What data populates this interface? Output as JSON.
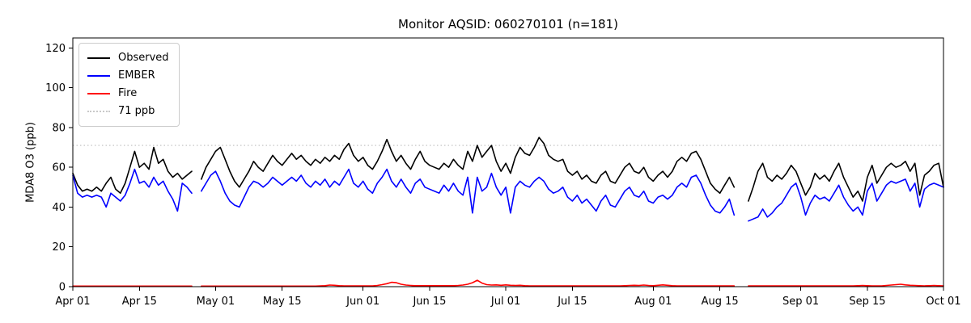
{
  "chart_data": {
    "type": "line",
    "title": "Monitor AQSID: 060270101 (n=181)",
    "ylabel": "MDA8 O3 (ppb)",
    "ylim": [
      0,
      125
    ],
    "yticks": [
      0,
      20,
      40,
      60,
      80,
      100,
      120
    ],
    "x_tick_labels": [
      "Apr 01",
      "Apr 15",
      "May 01",
      "May 15",
      "Jun 01",
      "Jun 15",
      "Jul 01",
      "Jul 15",
      "Aug 01",
      "Aug 15",
      "Sep 01",
      "Sep 15",
      "Oct 01"
    ],
    "x_tick_days": [
      0,
      14,
      30,
      44,
      61,
      75,
      91,
      105,
      122,
      136,
      153,
      167,
      183
    ],
    "n_days": 184,
    "grid": "off",
    "legend_position": "upper left",
    "threshold": {
      "value": 71,
      "label": "71 ppb",
      "color": "#c9c9c9",
      "style": "dotted"
    },
    "series": [
      {
        "name": "Observed",
        "color": "#000000",
        "values": [
          57,
          51,
          48,
          49,
          48,
          50,
          48,
          52,
          55,
          49,
          47,
          52,
          60,
          68,
          60,
          62,
          59,
          70,
          62,
          64,
          58,
          55,
          57,
          54,
          56,
          58,
          null,
          54,
          60,
          64,
          68,
          70,
          64,
          58,
          53,
          50,
          54,
          58,
          63,
          60,
          58,
          62,
          66,
          63,
          61,
          64,
          67,
          64,
          66,
          63,
          61,
          64,
          62,
          65,
          63,
          66,
          64,
          69,
          72,
          66,
          63,
          65,
          61,
          59,
          63,
          68,
          74,
          68,
          63,
          66,
          62,
          59,
          64,
          68,
          63,
          61,
          60,
          59,
          62,
          60,
          64,
          61,
          59,
          68,
          63,
          71,
          65,
          68,
          71,
          63,
          58,
          62,
          57,
          65,
          70,
          67,
          66,
          70,
          75,
          72,
          66,
          64,
          63,
          64,
          58,
          56,
          58,
          54,
          56,
          53,
          52,
          56,
          58,
          53,
          52,
          56,
          60,
          62,
          58,
          57,
          60,
          55,
          53,
          56,
          58,
          55,
          58,
          63,
          65,
          63,
          67,
          68,
          64,
          58,
          52,
          49,
          47,
          51,
          55,
          50,
          null,
          null,
          43,
          50,
          58,
          62,
          55,
          53,
          56,
          54,
          57,
          61,
          58,
          52,
          46,
          50,
          57,
          54,
          56,
          53,
          58,
          62,
          55,
          50,
          45,
          48,
          43,
          55,
          61,
          52,
          56,
          60,
          62,
          60,
          61,
          63,
          58,
          62,
          46,
          56,
          58,
          61,
          62,
          50
        ]
      },
      {
        "name": "EMBER",
        "color": "#0000ff",
        "values": [
          56,
          47,
          45,
          46,
          45,
          46,
          45,
          40,
          47,
          45,
          43,
          46,
          52,
          59,
          52,
          53,
          50,
          55,
          51,
          53,
          48,
          44,
          38,
          52,
          50,
          47,
          null,
          48,
          52,
          56,
          58,
          53,
          47,
          43,
          41,
          40,
          45,
          50,
          53,
          52,
          50,
          52,
          55,
          53,
          51,
          53,
          55,
          53,
          56,
          52,
          50,
          53,
          51,
          54,
          50,
          53,
          51,
          55,
          59,
          52,
          50,
          53,
          49,
          47,
          52,
          55,
          59,
          53,
          50,
          54,
          50,
          47,
          52,
          54,
          50,
          49,
          48,
          47,
          51,
          48,
          52,
          48,
          46,
          55,
          37,
          55,
          48,
          50,
          57,
          50,
          46,
          50,
          37,
          50,
          53,
          51,
          50,
          53,
          55,
          53,
          49,
          47,
          48,
          50,
          45,
          43,
          46,
          42,
          44,
          41,
          38,
          43,
          46,
          41,
          40,
          44,
          48,
          50,
          46,
          45,
          48,
          43,
          42,
          45,
          46,
          44,
          46,
          50,
          52,
          50,
          55,
          56,
          52,
          46,
          41,
          38,
          37,
          40,
          44,
          36,
          null,
          null,
          33,
          34,
          35,
          39,
          35,
          37,
          40,
          42,
          46,
          50,
          52,
          45,
          36,
          42,
          46,
          44,
          45,
          43,
          47,
          51,
          45,
          41,
          38,
          40,
          36,
          48,
          52,
          43,
          47,
          51,
          53,
          52,
          53,
          54,
          48,
          52,
          40,
          49,
          51,
          52,
          51,
          50
        ]
      },
      {
        "name": "Fire",
        "color": "#ff0000",
        "values": [
          0.3,
          0.3,
          0.3,
          0.3,
          0.3,
          0.3,
          0.3,
          0.3,
          0.3,
          0.3,
          0.3,
          0.3,
          0.3,
          0.3,
          0.3,
          0.3,
          0.3,
          0.3,
          0.3,
          0.3,
          0.3,
          0.3,
          0.3,
          0.3,
          0.3,
          0.3,
          null,
          0.3,
          0.3,
          0.3,
          0.3,
          0.3,
          0.3,
          0.3,
          0.3,
          0.3,
          0.3,
          0.3,
          0.3,
          0.3,
          0.3,
          0.3,
          0.3,
          0.3,
          0.3,
          0.3,
          0.3,
          0.3,
          0.3,
          0.3,
          0.3,
          0.3,
          0.4,
          0.5,
          0.8,
          0.7,
          0.5,
          0.4,
          0.4,
          0.4,
          0.4,
          0.4,
          0.4,
          0.4,
          0.6,
          1.0,
          1.5,
          2.2,
          2.0,
          1.2,
          0.8,
          0.6,
          0.5,
          0.5,
          0.5,
          0.5,
          0.5,
          0.5,
          0.5,
          0.5,
          0.5,
          0.6,
          0.8,
          1.2,
          2.0,
          3.2,
          1.8,
          1.0,
          0.8,
          0.9,
          0.7,
          0.9,
          0.7,
          0.6,
          0.7,
          0.5,
          0.4,
          0.4,
          0.4,
          0.4,
          0.4,
          0.4,
          0.4,
          0.4,
          0.4,
          0.4,
          0.4,
          0.4,
          0.4,
          0.4,
          0.4,
          0.4,
          0.4,
          0.4,
          0.4,
          0.4,
          0.5,
          0.6,
          0.7,
          0.6,
          0.8,
          0.6,
          0.5,
          0.7,
          0.9,
          0.7,
          0.5,
          0.4,
          0.4,
          0.4,
          0.4,
          0.4,
          0.4,
          0.4,
          0.4,
          0.4,
          0.4,
          0.4,
          0.4,
          0.4,
          null,
          null,
          0.4,
          0.4,
          0.4,
          0.4,
          0.4,
          0.4,
          0.4,
          0.4,
          0.4,
          0.4,
          0.4,
          0.4,
          0.4,
          0.4,
          0.4,
          0.4,
          0.4,
          0.4,
          0.4,
          0.4,
          0.4,
          0.4,
          0.4,
          0.5,
          0.6,
          0.5,
          0.4,
          0.4,
          0.4,
          0.6,
          0.8,
          1.0,
          1.2,
          0.9,
          0.7,
          0.6,
          0.5,
          0.4,
          0.5,
          0.6,
          0.5,
          0.4
        ]
      }
    ]
  }
}
